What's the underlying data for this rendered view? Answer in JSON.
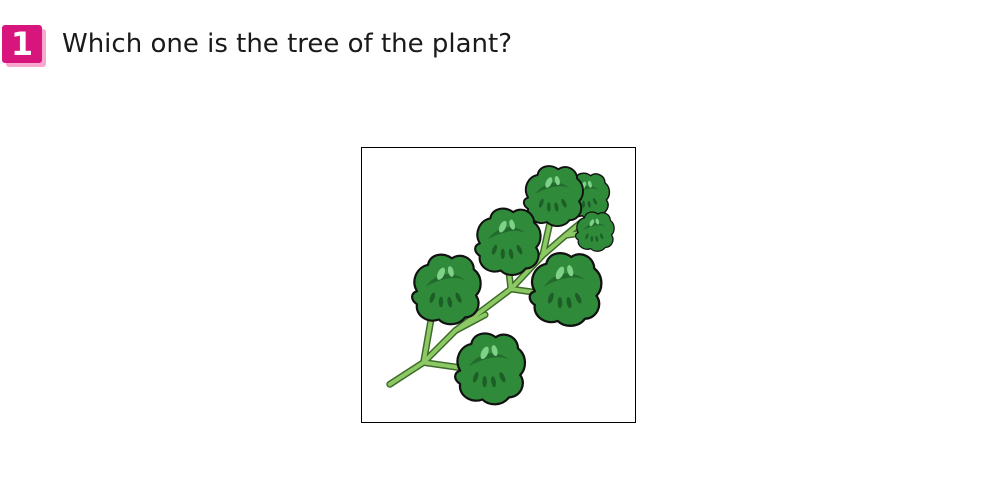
{
  "question": {
    "number": "1",
    "text": "Which one is the tree of the plant?"
  },
  "illustration": {
    "icon": "parsley-sprig-icon",
    "colors": {
      "leaf": "#2f8a3a",
      "leaf_dark": "#1c5e26",
      "leaf_highlight": "#7fd089",
      "stem": "#8cc863",
      "stem_outline": "#3d6b2a",
      "outline": "#111111"
    }
  }
}
